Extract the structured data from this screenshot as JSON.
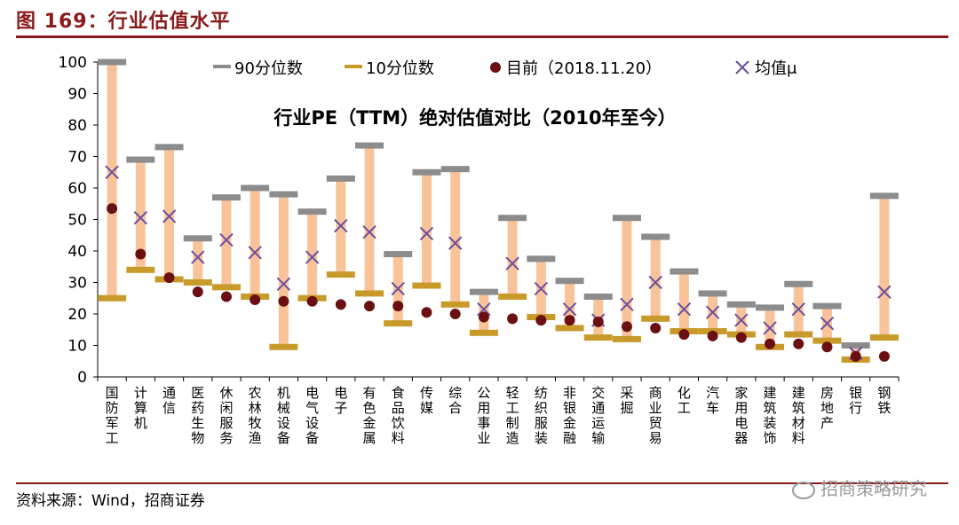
{
  "figure": {
    "title": "图 169：行业估值水平",
    "source": "资料来源：Wind，招商证券",
    "watermark": "招商策略研究"
  },
  "colors": {
    "accent": "#8b1a1a",
    "range_bar": "#f9c39a",
    "p90": "#8c8c8c",
    "p10": "#c79a2a",
    "current": "#6b0f12",
    "mean": "#6a4ea0"
  },
  "chart_data": {
    "type": "range",
    "title": "行业PE（TTM）绝对估值对比（2010年至今）",
    "ylim": [
      0,
      100
    ],
    "yticks": [
      0,
      10,
      20,
      30,
      40,
      50,
      60,
      70,
      80,
      90,
      100
    ],
    "legend": [
      "90分位数",
      "10分位数",
      "目前（2018.11.20）",
      "均值μ"
    ],
    "legend_position": "top",
    "categories": [
      "国防军工",
      "计算机",
      "通信",
      "医药生物",
      "休闲服务",
      "农林牧渔",
      "机械设备",
      "电气设备",
      "电子",
      "有色金属",
      "食品饮料",
      "传媒",
      "综合",
      "公用事业",
      "轻工制造",
      "纺织服装",
      "非银金融",
      "交通运输",
      "采掘",
      "商业贸易",
      "化工",
      "汽车",
      "家用电器",
      "建筑装饰",
      "建筑材料",
      "房地产",
      "银行",
      "钢铁"
    ],
    "series": [
      {
        "name": "90分位数",
        "values": [
          100,
          69,
          73,
          44,
          57,
          60,
          58,
          52.5,
          63,
          73.5,
          39,
          65,
          66,
          27,
          50.5,
          37.5,
          30.5,
          25.5,
          50.5,
          44.5,
          33.5,
          26.5,
          23,
          22,
          29.5,
          22.5,
          10,
          57.5
        ]
      },
      {
        "name": "10分位数",
        "values": [
          25,
          34,
          31,
          30,
          28.5,
          25.5,
          9.5,
          25,
          32.5,
          26.5,
          17,
          29,
          23,
          14,
          25.5,
          19,
          15.5,
          12.5,
          12,
          18.5,
          14.5,
          14.5,
          13.5,
          9.5,
          13.5,
          11.5,
          5.5,
          12.5
        ]
      },
      {
        "name": "目前（2018.11.20）",
        "values": [
          53.5,
          39,
          31.5,
          27,
          25.5,
          24.5,
          24,
          24,
          23,
          22.5,
          22.5,
          20.5,
          20,
          19,
          18.5,
          18,
          18,
          17.5,
          16,
          15.5,
          13.5,
          13,
          12.5,
          10.5,
          10.5,
          9.5,
          6.5,
          6.5
        ]
      },
      {
        "name": "均值μ",
        "values": [
          65,
          50.5,
          51,
          38,
          43.5,
          39.5,
          29.5,
          38,
          48,
          46,
          28,
          45.5,
          42.5,
          21.5,
          36,
          28,
          21.5,
          18,
          23,
          30,
          21.5,
          20.5,
          18,
          15.5,
          21.5,
          17,
          7.5,
          27
        ]
      }
    ]
  }
}
